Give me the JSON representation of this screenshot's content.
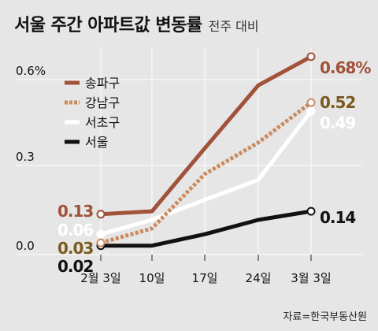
{
  "header": {
    "title": "서울 주간 아파트값 변동률",
    "subtitle": "전주 대비"
  },
  "source": "자료=한국부동산원",
  "chart_data": {
    "type": "line",
    "title": "서울 주간 아파트값 변동률",
    "subtitle": "전주 대비",
    "categories": [
      "2월 3일",
      "10일",
      "17일",
      "24일",
      "3월 3일"
    ],
    "y_ticks": [
      "0.6%",
      "0.3",
      "0.0"
    ],
    "ylim": [
      0,
      0.72
    ],
    "grid": true,
    "legend_placement": "top-left",
    "series": [
      {
        "name": "송파구",
        "values": [
          0.13,
          0.14,
          0.36,
          0.58,
          0.68
        ],
        "color": "#a0523a",
        "style": "solid",
        "first_label": "0.13",
        "last_label": "0.68%"
      },
      {
        "name": "강남구",
        "values": [
          0.03,
          0.08,
          0.27,
          0.38,
          0.52
        ],
        "color": "#c98b5e",
        "style": "dotted",
        "first_label": "0.03",
        "last_label": "0.52"
      },
      {
        "name": "서초구",
        "values": [
          0.06,
          0.11,
          0.18,
          0.25,
          0.49
        ],
        "color": "#ffffff",
        "style": "solid",
        "first_label": "0.06",
        "last_label": "0.49"
      },
      {
        "name": "서울",
        "values": [
          0.02,
          0.02,
          0.06,
          0.11,
          0.14
        ],
        "color": "#111111",
        "style": "solid",
        "first_label": "0.02",
        "last_label": "0.14"
      }
    ],
    "label_colors": {
      "songpa": "#a0523a",
      "gangnam": "#7a5a1e",
      "seocho": "#ffffff",
      "seoul": "#111111"
    }
  }
}
